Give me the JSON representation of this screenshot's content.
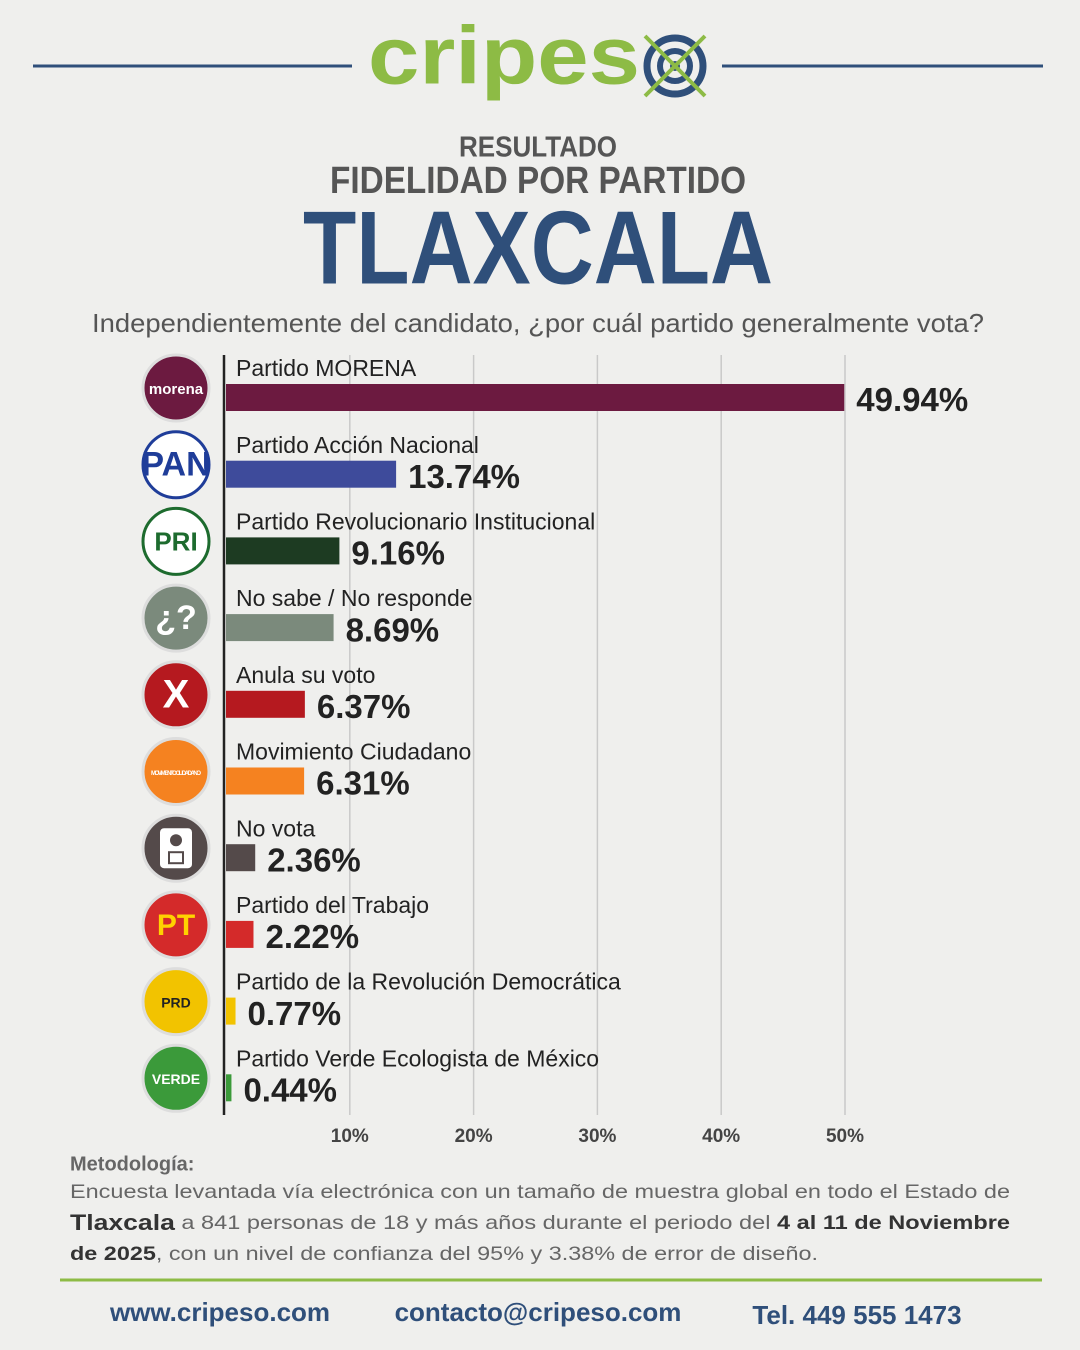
{
  "header": {
    "brand": "cripes",
    "kicker": "RESULTADO",
    "title": "FIDELIDAD POR PARTIDO",
    "state": "TLAXCALA",
    "question": "Independientemente del candidato, ¿por cuál partido generalmente vota?"
  },
  "logo_texts": {
    "morena": "morena",
    "pan": "PAN",
    "pri": "PRI",
    "ns": "¿?",
    "anula": "X",
    "mc": "MOVIMIENTO CIUDADANO",
    "pt": "PT",
    "prd": "PRD",
    "verde": "VERDE"
  },
  "chart_data": {
    "type": "bar",
    "orientation": "horizontal",
    "categories": [
      "Partido MORENA",
      "Partido Acción Nacional",
      "Partido Revolucionario Institucional",
      "No sabe / No responde",
      "Anula su voto",
      "Movimiento Ciudadano",
      "No vota",
      "Partido del Trabajo",
      "Partido de la Revolución Democrática",
      "Partido Verde Ecologista de México"
    ],
    "values": [
      49.94,
      13.74,
      9.16,
      8.69,
      6.37,
      6.31,
      2.36,
      2.22,
      0.77,
      0.44
    ],
    "value_labels": [
      "49.94%",
      "13.74%",
      "9.16%",
      "8.69%",
      "6.37%",
      "6.31%",
      "2.36%",
      "2.22%",
      "0.77%",
      "0.44%"
    ],
    "colors": [
      "#6c1a40",
      "#3e4b9b",
      "#1d3b22",
      "#7b8a7c",
      "#b5191f",
      "#f58220",
      "#544a4a",
      "#d42a2a",
      "#f2c300",
      "#3b9a3a"
    ],
    "xlim": [
      0,
      50
    ],
    "xticks": [
      {
        "value": 10,
        "label": "10%"
      },
      {
        "value": 20,
        "label": "20%"
      },
      {
        "value": 30,
        "label": "30%"
      },
      {
        "value": 40,
        "label": "40%"
      },
      {
        "value": 50,
        "label": "50%"
      }
    ],
    "grid": true
  },
  "methodology": {
    "title": "Metodología:",
    "lines": [
      [
        {
          "text": "Encuesta levantada vía electrónica con un tamaño de muestra global en todo el Estado de"
        }
      ],
      [
        {
          "text": "Tlaxcala",
          "bold": true
        },
        {
          "text": " a 841 personas de 18 y más años durante el periodo del "
        },
        {
          "text": "4 al 11 de Noviembre",
          "bold": true
        }
      ],
      [
        {
          "text": "de 2025",
          "bold": true
        },
        {
          "text": ", con un nivel de confianza del 95% y 3.38% de error de diseño."
        }
      ]
    ]
  },
  "footer": {
    "website": "www.cripeso.com",
    "email": "contacto@cripeso.com",
    "phone": "Tel. 449 555 1473"
  }
}
